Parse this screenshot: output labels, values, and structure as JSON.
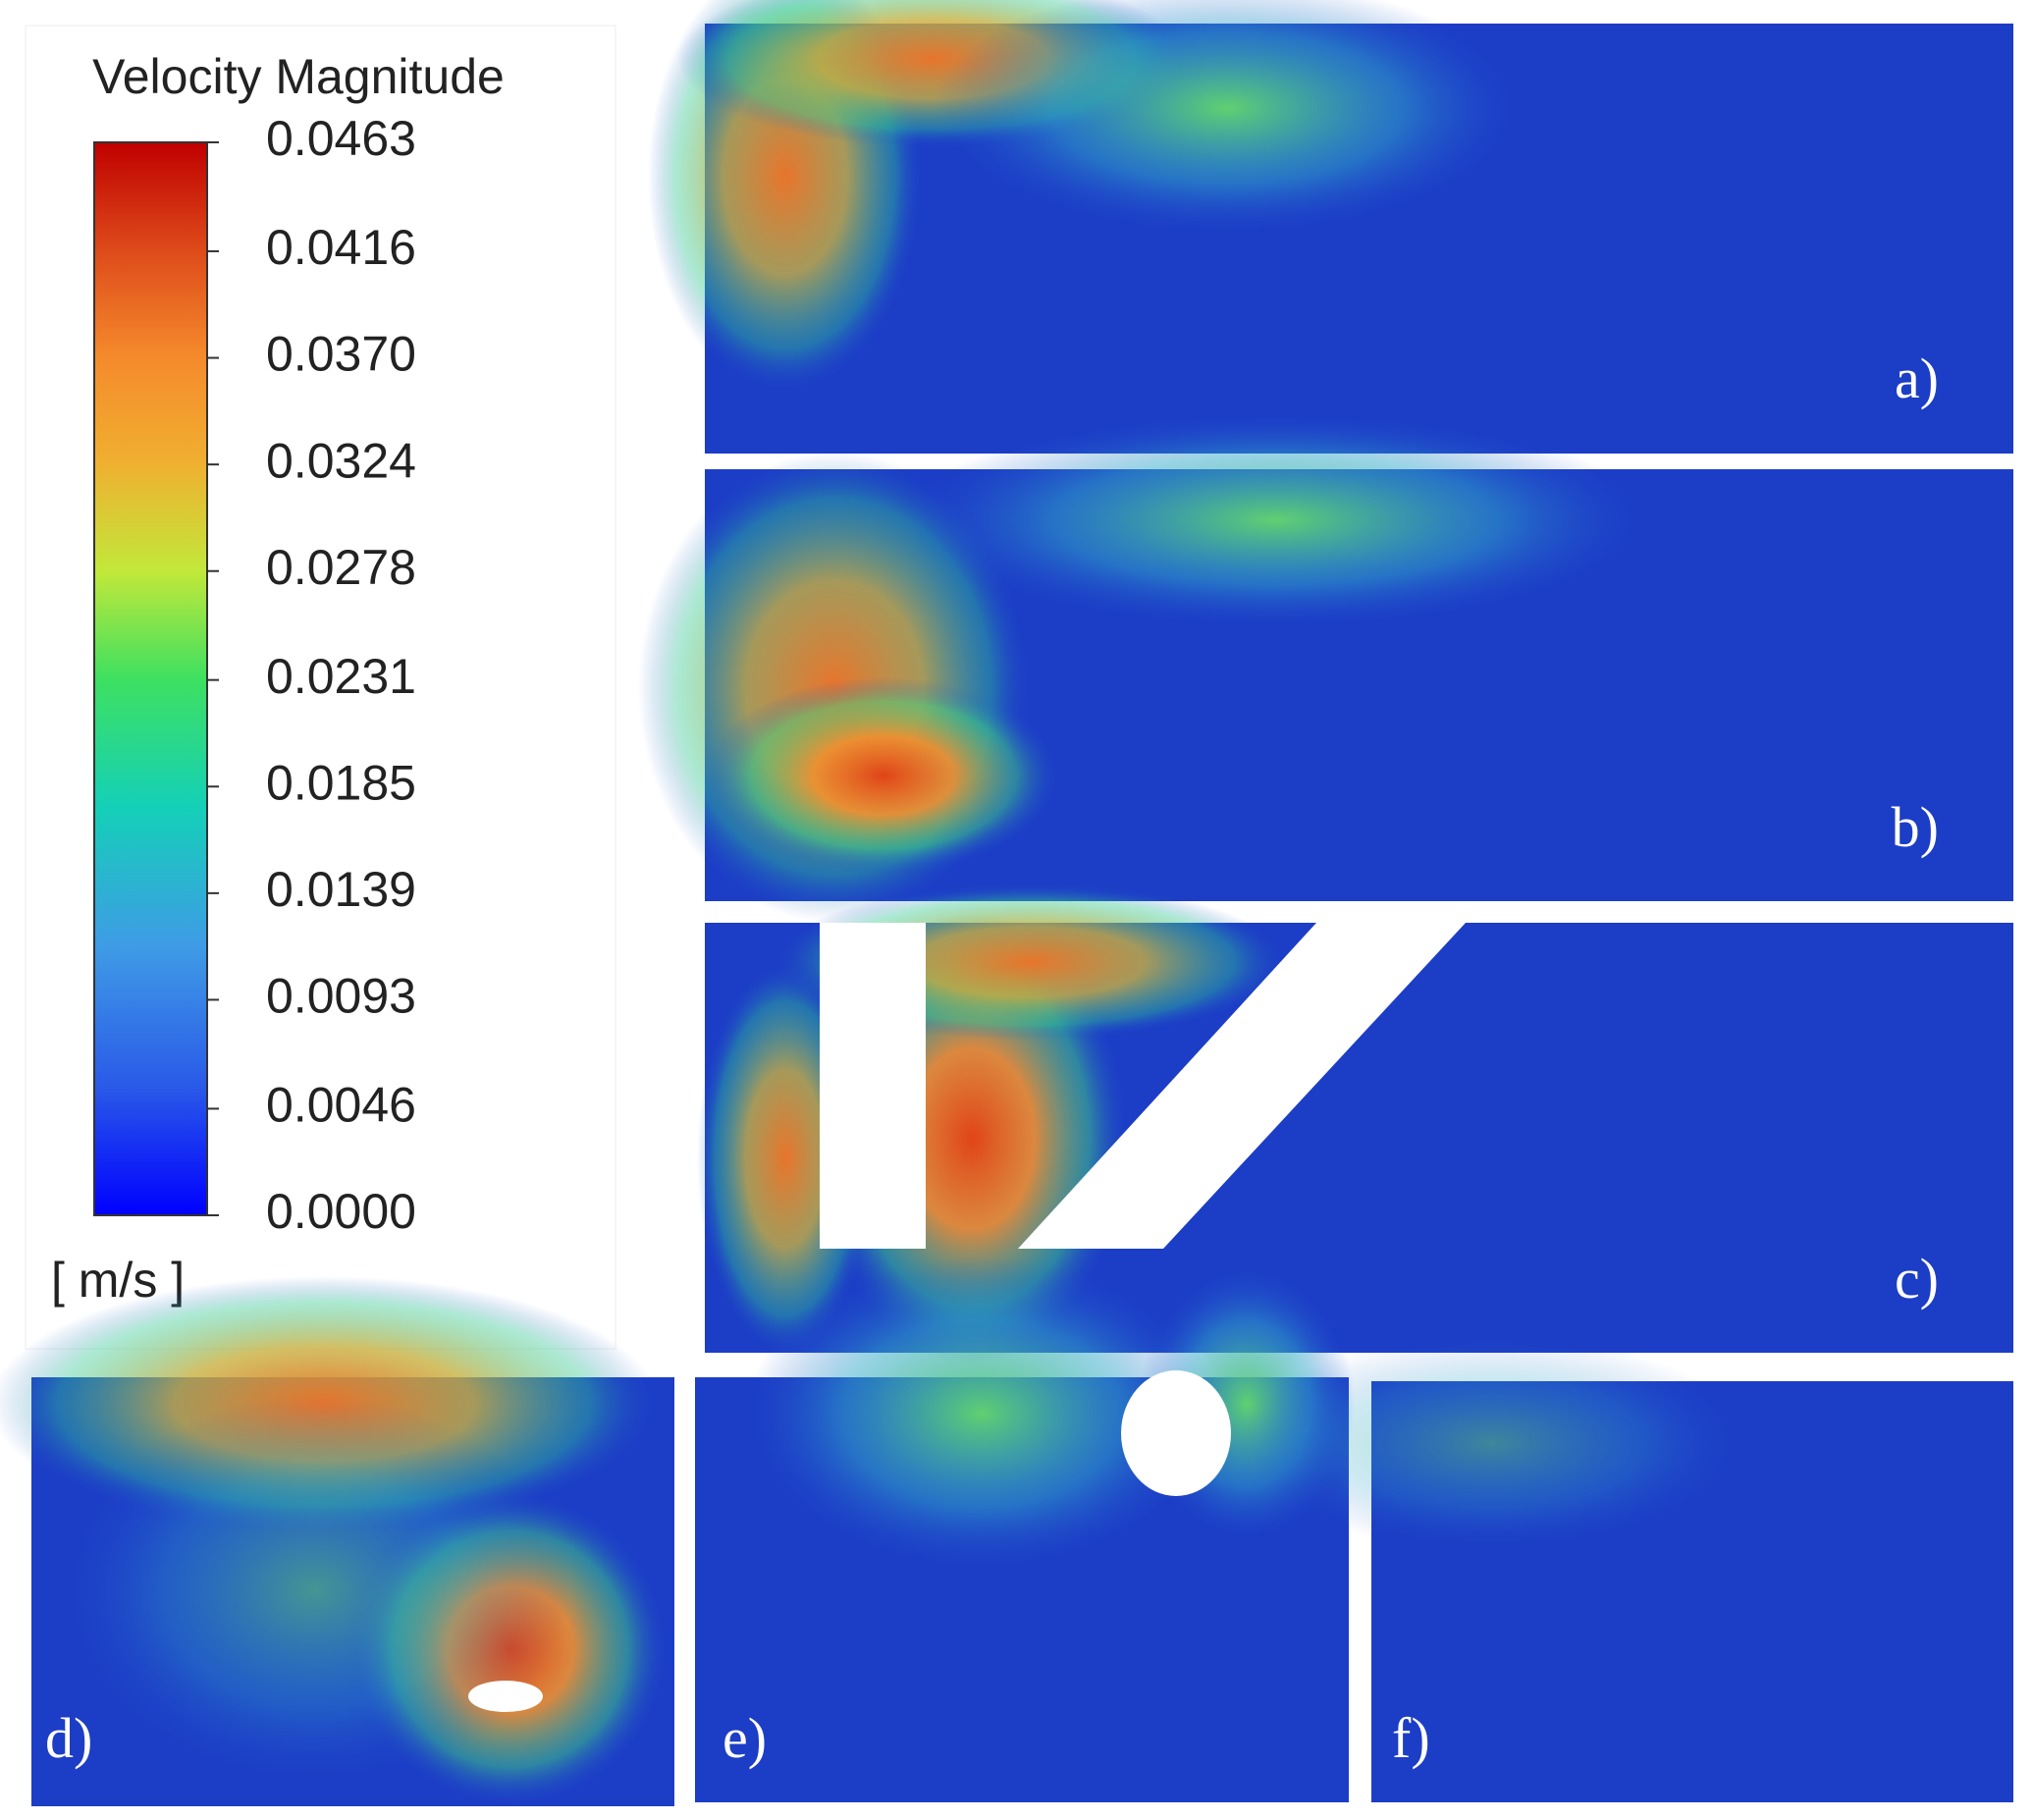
{
  "colorbar": {
    "title": "Velocity Magnitude",
    "ticks": [
      {
        "value": 0.0463,
        "label": "0.0463"
      },
      {
        "value": 0.0416,
        "label": "0.0416"
      },
      {
        "value": 0.037,
        "label": "0.0370"
      },
      {
        "value": 0.0324,
        "label": "0.0324"
      },
      {
        "value": 0.0278,
        "label": "0.0278"
      },
      {
        "value": 0.0231,
        "label": "0.0231"
      },
      {
        "value": 0.0185,
        "label": "0.0185"
      },
      {
        "value": 0.0139,
        "label": "0.0139"
      },
      {
        "value": 0.0093,
        "label": "0.0093"
      },
      {
        "value": 0.0046,
        "label": "0.0046"
      },
      {
        "value": 0,
        "label": "0.0000"
      }
    ],
    "unit": "[ m/s ]"
  },
  "panels": [
    "a)",
    "b)",
    "c)",
    "d)",
    "e)",
    "f)"
  ]
}
